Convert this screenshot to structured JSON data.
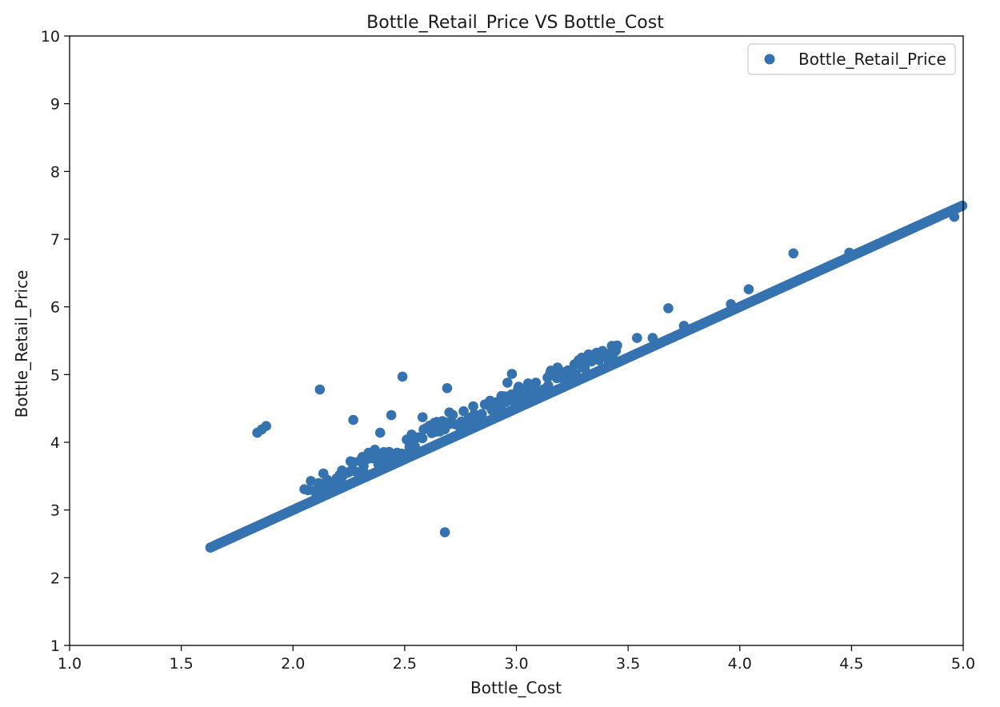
{
  "chart_data": {
    "type": "scatter",
    "title": "Bottle_Retail_Price VS Bottle_Cost",
    "xlabel": "Bottle_Cost",
    "ylabel": "Bottle_Retail_Price",
    "xlim": [
      1.0,
      5.0
    ],
    "ylim": [
      1,
      10
    ],
    "xticks": [
      "1.0",
      "1.5",
      "2.0",
      "2.5",
      "3.0",
      "3.5",
      "4.0",
      "4.5",
      "5.0"
    ],
    "yticks": [
      "1",
      "2",
      "3",
      "4",
      "5",
      "6",
      "7",
      "8",
      "9",
      "10"
    ],
    "grid": false,
    "legend": {
      "position": "top-right",
      "entries": [
        "Bottle_Retail_Price"
      ]
    },
    "series": [
      {
        "name": "Bottle_Retail_Price",
        "color": "#3572b0",
        "trend": {
          "slope": 1.5,
          "intercept": 0.0,
          "x_start": 1.63,
          "x_end": 5.0
        },
        "above_trend_band": {
          "x_start": 2.05,
          "x_end": 3.45,
          "y_offset": [
            0.08,
            0.35
          ]
        },
        "outliers": [
          {
            "x": 1.84,
            "y": 4.14
          },
          {
            "x": 1.86,
            "y": 4.19
          },
          {
            "x": 1.88,
            "y": 4.24
          },
          {
            "x": 2.12,
            "y": 4.78
          },
          {
            "x": 2.27,
            "y": 4.33
          },
          {
            "x": 2.39,
            "y": 4.14
          },
          {
            "x": 2.44,
            "y": 4.4
          },
          {
            "x": 2.49,
            "y": 4.97
          },
          {
            "x": 2.58,
            "y": 4.37
          },
          {
            "x": 2.63,
            "y": 4.25
          },
          {
            "x": 2.68,
            "y": 2.67
          },
          {
            "x": 2.69,
            "y": 4.8
          },
          {
            "x": 2.7,
            "y": 4.44
          },
          {
            "x": 2.7,
            "y": 4.29
          },
          {
            "x": 2.96,
            "y": 4.88
          },
          {
            "x": 2.98,
            "y": 5.01
          },
          {
            "x": 3.01,
            "y": 4.82
          },
          {
            "x": 3.26,
            "y": 5.15
          },
          {
            "x": 3.3,
            "y": 5.17
          },
          {
            "x": 3.4,
            "y": 5.29
          },
          {
            "x": 3.54,
            "y": 5.54
          },
          {
            "x": 3.61,
            "y": 5.54
          },
          {
            "x": 3.68,
            "y": 5.98
          },
          {
            "x": 3.75,
            "y": 5.72
          },
          {
            "x": 3.96,
            "y": 6.04
          },
          {
            "x": 4.04,
            "y": 6.26
          },
          {
            "x": 4.24,
            "y": 6.79
          },
          {
            "x": 4.49,
            "y": 6.8
          },
          {
            "x": 4.96,
            "y": 7.33
          }
        ]
      }
    ]
  }
}
